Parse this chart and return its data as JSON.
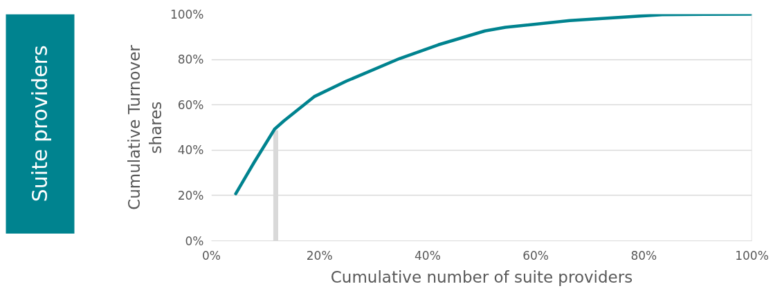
{
  "chart_data": {
    "type": "line",
    "xlabel": "Cumulative number of suite providers",
    "ylabel": "Cumulative Turnover shares",
    "annotations": [
      "Suite providers"
    ],
    "series": [
      {
        "color": "#00838f",
        "x": [
          4.5,
          7.9,
          11.7,
          13.4,
          19.0,
          25.0,
          34.8,
          42.0,
          50.6,
          54.4,
          66.3,
          83.4,
          100
        ],
        "values": [
          20.8,
          34.6,
          49.3,
          52.9,
          63.6,
          70.5,
          80.4,
          86.5,
          92.6,
          94.2,
          97.2,
          99.8,
          100
        ]
      },
      {
        "type": "bar",
        "color": "#d9d9d9",
        "x": [
          11.9
        ],
        "values": [
          48.8
        ]
      }
    ],
    "xlim": [
      0,
      100
    ],
    "ylim": [
      0,
      100
    ],
    "xticks": [
      {
        "value": 0,
        "label": "0%"
      },
      {
        "value": 20,
        "label": "20%"
      },
      {
        "value": 40,
        "label": "40%"
      },
      {
        "value": 60,
        "label": "60%"
      },
      {
        "value": 80,
        "label": "80%"
      },
      {
        "value": 100,
        "label": "100%"
      }
    ],
    "yticks": [
      {
        "value": 0,
        "label": "0%"
      },
      {
        "value": 20,
        "label": "20%"
      },
      {
        "value": 40,
        "label": "40%"
      },
      {
        "value": 60,
        "label": "60%"
      },
      {
        "value": 80,
        "label": "80%"
      },
      {
        "value": 100,
        "label": "100%"
      }
    ],
    "grid": "y",
    "marker": "none"
  }
}
